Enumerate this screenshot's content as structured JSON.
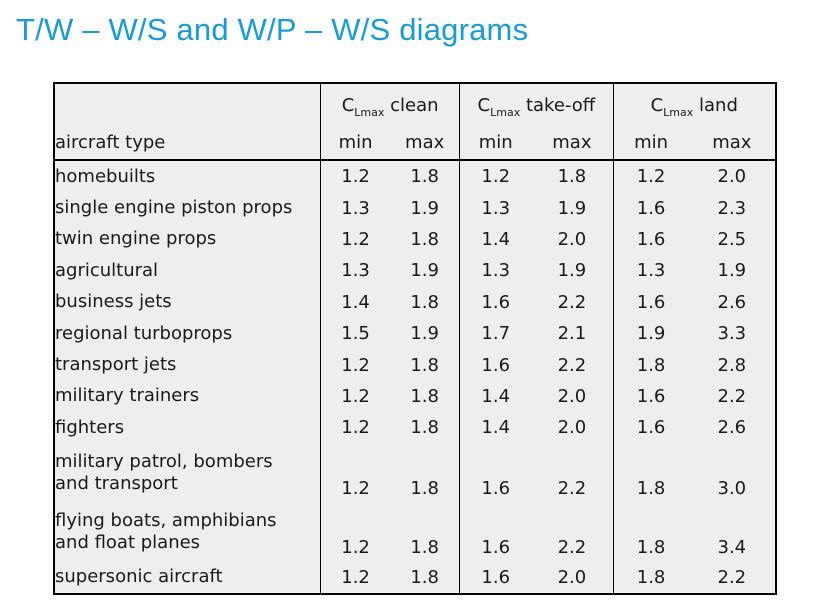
{
  "title": "T/W – W/S and W/P – W/S diagrams",
  "table": {
    "groups": [
      {
        "prefix": "C",
        "sub": "Lmax",
        "label": "clean"
      },
      {
        "prefix": "C",
        "sub": "Lmax",
        "label": "take-off"
      },
      {
        "prefix": "C",
        "sub": "Lmax",
        "label": "land"
      }
    ],
    "type_header": "aircraft type",
    "sub_headers": [
      "min",
      "max",
      "min",
      "max",
      "min",
      "max"
    ],
    "rows": [
      {
        "type": [
          "homebuilts"
        ],
        "values": [
          "1.2",
          "1.8",
          "1.2",
          "1.8",
          "1.2",
          "2.0"
        ]
      },
      {
        "type": [
          "single engine piston props"
        ],
        "values": [
          "1.3",
          "1.9",
          "1.3",
          "1.9",
          "1.6",
          "2.3"
        ]
      },
      {
        "type": [
          "twin engine props"
        ],
        "values": [
          "1.2",
          "1.8",
          "1.4",
          "2.0",
          "1.6",
          "2.5"
        ]
      },
      {
        "type": [
          "agricultural"
        ],
        "values": [
          "1.3",
          "1.9",
          "1.3",
          "1.9",
          "1.3",
          "1.9"
        ]
      },
      {
        "type": [
          "business jets"
        ],
        "values": [
          "1.4",
          "1.8",
          "1.6",
          "2.2",
          "1.6",
          "2.6"
        ]
      },
      {
        "type": [
          "regional turboprops"
        ],
        "values": [
          "1.5",
          "1.9",
          "1.7",
          "2.1",
          "1.9",
          "3.3"
        ]
      },
      {
        "type": [
          "transport jets"
        ],
        "values": [
          "1.2",
          "1.8",
          "1.6",
          "2.2",
          "1.8",
          "2.8"
        ]
      },
      {
        "type": [
          "military trainers"
        ],
        "values": [
          "1.2",
          "1.8",
          "1.4",
          "2.0",
          "1.6",
          "2.2"
        ]
      },
      {
        "type": [
          "fighters"
        ],
        "values": [
          "1.2",
          "1.8",
          "1.4",
          "2.0",
          "1.6",
          "2.6"
        ]
      },
      {
        "type": [
          "military patrol, bombers",
          "and transport"
        ],
        "values": [
          "1.2",
          "1.8",
          "1.6",
          "2.2",
          "1.8",
          "3.0"
        ]
      },
      {
        "type": [
          "flying boats, amphibians",
          "and float planes"
        ],
        "values": [
          "1.2",
          "1.8",
          "1.6",
          "2.2",
          "1.8",
          "3.4"
        ]
      },
      {
        "type": [
          "supersonic aircraft"
        ],
        "values": [
          "1.2",
          "1.8",
          "1.6",
          "2.0",
          "1.8",
          "2.2"
        ]
      }
    ]
  }
}
